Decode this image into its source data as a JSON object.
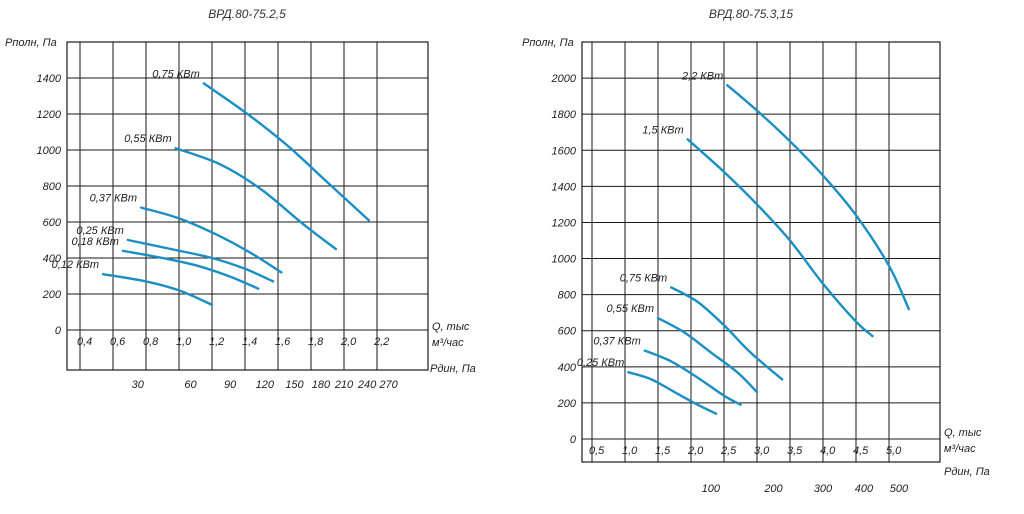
{
  "chart_data": [
    {
      "type": "line",
      "title": "ВРД.80-75.2,5",
      "ylabel": "Pполн, Па",
      "xlabel": [
        "Q, тыс",
        "м³/час"
      ],
      "x2label": "Pдин, Па",
      "ylim": [
        0,
        1600
      ],
      "y_ticks": [
        0,
        200,
        400,
        600,
        800,
        1000,
        1200,
        1400
      ],
      "y_tick_labels": [
        "0",
        "200",
        "400",
        "600",
        "800",
        "1000",
        "1200",
        "1400"
      ],
      "xlim": [
        0.4,
        2.4
      ],
      "x_ticks": [
        0.4,
        0.6,
        0.8,
        1.0,
        1.2,
        1.4,
        1.6,
        1.8,
        2.0,
        2.2
      ],
      "x_tick_labels": [
        "0,4",
        "0,6",
        "0,8",
        "1,0",
        "1,2",
        "1,4",
        "1,6",
        "1,8",
        "2,0",
        "2,2"
      ],
      "x2_ticks": [
        {
          "label": "30",
          "q": 0.75
        },
        {
          "label": "60",
          "q": 1.07
        },
        {
          "label": "90",
          "q": 1.31
        },
        {
          "label": "120",
          "q": 1.52
        },
        {
          "label": "150",
          "q": 1.7
        },
        {
          "label": "180",
          "q": 1.86
        },
        {
          "label": "210",
          "q": 2.0
        },
        {
          "label": "240",
          "q": 2.14
        },
        {
          "label": "270",
          "q": 2.27
        }
      ],
      "series": [
        {
          "name": "0,75 КВт",
          "points": [
            [
              1.15,
              1370
            ],
            [
              1.4,
              1210
            ],
            [
              1.65,
              1030
            ],
            [
              1.9,
              820
            ],
            [
              2.15,
              610
            ]
          ]
        },
        {
          "name": "0,55 КВт",
          "points": [
            [
              0.98,
              1010
            ],
            [
              1.25,
              920
            ],
            [
              1.5,
              780
            ],
            [
              1.75,
              590
            ],
            [
              1.95,
              450
            ]
          ]
        },
        {
          "name": "0,37 КВт",
          "points": [
            [
              0.77,
              680
            ],
            [
              1.0,
              620
            ],
            [
              1.25,
              520
            ],
            [
              1.45,
              420
            ],
            [
              1.62,
              320
            ]
          ]
        },
        {
          "name": "0,25 КВт",
          "points": [
            [
              0.69,
              500
            ],
            [
              0.95,
              450
            ],
            [
              1.2,
              400
            ],
            [
              1.4,
              340
            ],
            [
              1.57,
              270
            ]
          ]
        },
        {
          "name": "0,18 КВт",
          "points": [
            [
              0.66,
              440
            ],
            [
              0.9,
              400
            ],
            [
              1.1,
              360
            ],
            [
              1.3,
              300
            ],
            [
              1.48,
              230
            ]
          ]
        },
        {
          "name": "0,12 КВт",
          "points": [
            [
              0.54,
              310
            ],
            [
              0.8,
              270
            ],
            [
              1.0,
              220
            ],
            [
              1.2,
              140
            ]
          ]
        }
      ]
    },
    {
      "type": "line",
      "title": "ВРД.80-75.3,15",
      "ylabel": "Pполн, Па",
      "xlabel": [
        "Q, тыс",
        "м³/час"
      ],
      "x2label": "Pдин, Па",
      "ylim": [
        0,
        2200
      ],
      "y_ticks": [
        0,
        200,
        400,
        600,
        800,
        1000,
        1200,
        1400,
        1600,
        1800,
        2000
      ],
      "y_tick_labels": [
        "0",
        "200",
        "400",
        "600",
        "800",
        "1000",
        "1200",
        "1400",
        "1600",
        "1800",
        "2000"
      ],
      "xlim": [
        0.5,
        5.5
      ],
      "x_ticks": [
        0.5,
        1.0,
        1.5,
        2.0,
        2.5,
        3.0,
        3.5,
        4.0,
        4.5,
        5.0
      ],
      "x_tick_labels": [
        "0,5",
        "1,0",
        "1,5",
        "2,0",
        "2,5",
        "3,0",
        "3,5",
        "4,0",
        "4,5",
        "5,0"
      ],
      "x2_ticks": [
        {
          "label": "100",
          "q": 2.3
        },
        {
          "label": "200",
          "q": 3.25
        },
        {
          "label": "300",
          "q": 4.0
        },
        {
          "label": "400",
          "q": 4.62
        },
        {
          "label": "500",
          "q": 5.15
        }
      ],
      "series": [
        {
          "name": "2,2 КВт",
          "points": [
            [
              2.55,
              1960
            ],
            [
              3.0,
              1820
            ],
            [
              3.5,
              1650
            ],
            [
              4.0,
              1460
            ],
            [
              4.5,
              1240
            ],
            [
              5.0,
              960
            ],
            [
              5.3,
              720
            ]
          ]
        },
        {
          "name": "1,5 КВт",
          "points": [
            [
              1.95,
              1660
            ],
            [
              2.5,
              1480
            ],
            [
              3.0,
              1300
            ],
            [
              3.5,
              1100
            ],
            [
              4.0,
              860
            ],
            [
              4.5,
              650
            ],
            [
              4.75,
              570
            ]
          ]
        },
        {
          "name": "0,75 КВт",
          "points": [
            [
              1.7,
              840
            ],
            [
              2.1,
              760
            ],
            [
              2.5,
              630
            ],
            [
              2.9,
              480
            ],
            [
              3.38,
              330
            ]
          ]
        },
        {
          "name": "0,55 КВт",
          "points": [
            [
              1.5,
              670
            ],
            [
              1.9,
              590
            ],
            [
              2.3,
              480
            ],
            [
              2.7,
              370
            ],
            [
              3.0,
              260
            ]
          ]
        },
        {
          "name": "0,37 КВт",
          "points": [
            [
              1.3,
              490
            ],
            [
              1.7,
              430
            ],
            [
              2.1,
              340
            ],
            [
              2.5,
              240
            ],
            [
              2.75,
              190
            ]
          ]
        },
        {
          "name": "0,25 КВт",
          "points": [
            [
              1.05,
              370
            ],
            [
              1.4,
              330
            ],
            [
              1.8,
              250
            ],
            [
              2.1,
              190
            ],
            [
              2.38,
              140
            ]
          ]
        }
      ]
    }
  ]
}
